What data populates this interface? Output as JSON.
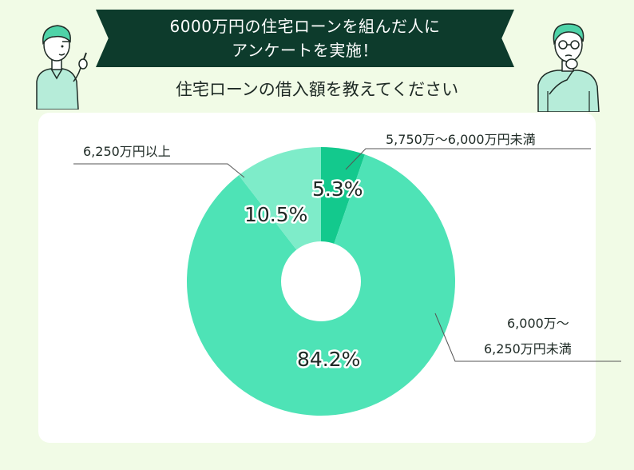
{
  "header": {
    "banner_line1": "6000万円の住宅ローンを組んだ人に",
    "banner_line2": "アンケートを実施！",
    "question": "住宅ローンの借入額を教えてください"
  },
  "illustrations": {
    "left": "woman-pointing-icon",
    "right": "man-thinking-icon"
  },
  "chart_data": {
    "type": "pie",
    "donut": true,
    "title": "住宅ローンの借入額を教えてください",
    "slices": [
      {
        "label": "5,750万～6,000万円未満",
        "value": 5.3,
        "pct_label": "5.3%",
        "color": "#13c98d"
      },
      {
        "label": "6,000万～6,250万円未満",
        "value": 84.2,
        "pct_label": "84.2%",
        "color": "#4ee3b6"
      },
      {
        "label": "6,250万円以上",
        "value": 10.5,
        "pct_label": "10.5%",
        "color": "#7eecc9"
      }
    ],
    "label_lines": {
      "s0": "5,750万～6,000万円未満",
      "s1a": "6,000万～",
      "s1b": "6,250万円未満",
      "s2": "6,250万円以上"
    }
  }
}
